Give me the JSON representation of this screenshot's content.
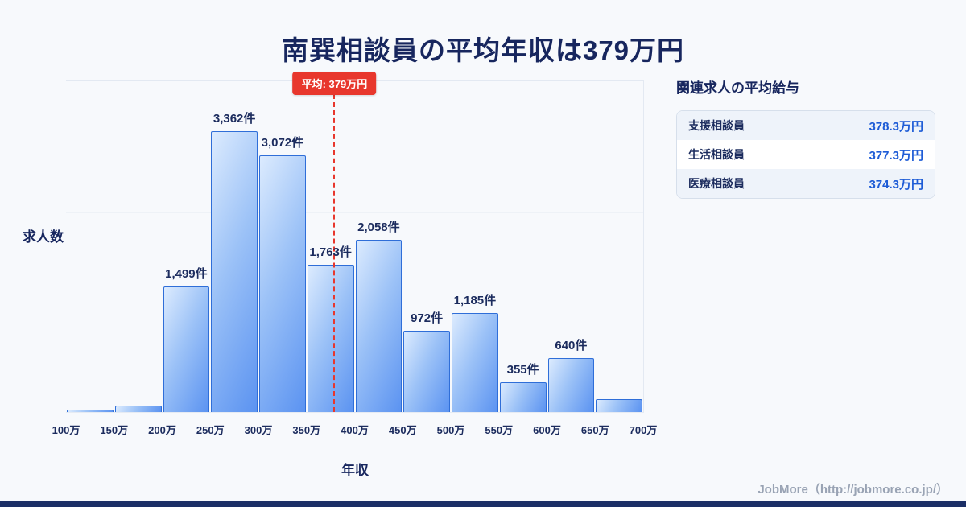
{
  "page": {
    "title": "南巽相談員の平均年収は379万円",
    "footer": "JobMore（http://jobmore.co.jp/）"
  },
  "colors": {
    "accent_navy": "#17265e",
    "bar_fill_light": "#dcebfe",
    "bar_fill_dark": "#5b93f1",
    "bar_border": "#2f6ed8",
    "average_red": "#e8372d",
    "value_blue": "#1e5cd6"
  },
  "chart_data": {
    "type": "bar",
    "title": "南巽相談員の平均年収は379万円",
    "xlabel": "年収",
    "ylabel": "求人数",
    "bin_edge_labels": [
      "100万",
      "150万",
      "200万",
      "250万",
      "300万",
      "350万",
      "400万",
      "450万",
      "500万",
      "550万",
      "600万",
      "650万",
      "700万"
    ],
    "values": [
      30,
      80,
      1499,
      3362,
      3072,
      1763,
      2058,
      972,
      1185,
      355,
      640,
      150
    ],
    "bar_labels": [
      null,
      null,
      "1,499件",
      "3,362件",
      "3,072件",
      "1,763件",
      "2,058件",
      "972件",
      "1,185件",
      "355件",
      "640件",
      null
    ],
    "average": {
      "value": 379,
      "label": "平均: 379万円",
      "axis_min": 100,
      "axis_max": 700
    },
    "ylim": [
      0,
      3600
    ],
    "grid": "minimal",
    "legend": "none"
  },
  "side_panel": {
    "heading": "関連求人の平均給与",
    "rows": [
      {
        "label": "支援相談員",
        "value": "378.3万円"
      },
      {
        "label": "生活相談員",
        "value": "377.3万円"
      },
      {
        "label": "医療相談員",
        "value": "374.3万円"
      }
    ]
  }
}
